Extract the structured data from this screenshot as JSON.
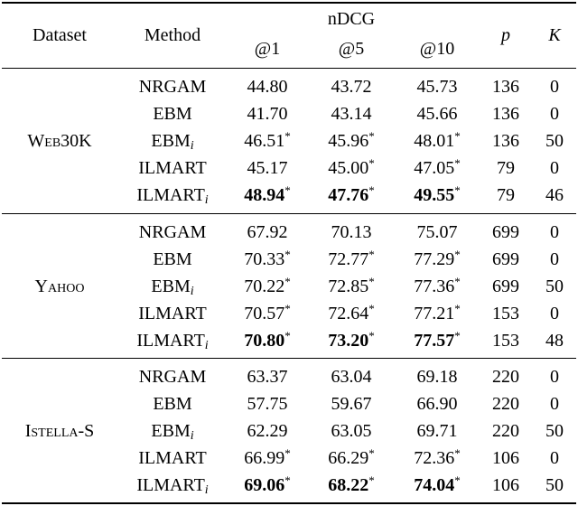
{
  "header": {
    "dataset": "Dataset",
    "method": "Method",
    "ndcg": "nDCG",
    "at1": "@1",
    "at5": "@5",
    "at10": "@10",
    "p": "p",
    "k": "K"
  },
  "groups": [
    {
      "dataset": "Web30K",
      "rows": [
        {
          "method": "NRGAM",
          "sub": "",
          "v1": "44.80",
          "s1": "",
          "b1": false,
          "v5": "43.72",
          "s5": "",
          "b5": false,
          "v10": "45.73",
          "s10": "",
          "b10": false,
          "p": "136",
          "k": "0"
        },
        {
          "method": "EBM",
          "sub": "",
          "v1": "41.70",
          "s1": "",
          "b1": false,
          "v5": "43.14",
          "s5": "",
          "b5": false,
          "v10": "45.66",
          "s10": "",
          "b10": false,
          "p": "136",
          "k": "0"
        },
        {
          "method": "EBM",
          "sub": "i",
          "v1": "46.51",
          "s1": "*",
          "b1": false,
          "v5": "45.96",
          "s5": "*",
          "b5": false,
          "v10": "48.01",
          "s10": "*",
          "b10": false,
          "p": "136",
          "k": "50"
        },
        {
          "method": "ILMART",
          "sub": "",
          "v1": "45.17",
          "s1": "",
          "b1": false,
          "v5": "45.00",
          "s5": "*",
          "b5": false,
          "v10": "47.05",
          "s10": "*",
          "b10": false,
          "p": "79",
          "k": "0"
        },
        {
          "method": "ILMART",
          "sub": "i",
          "v1": "48.94",
          "s1": "*",
          "b1": true,
          "v5": "47.76",
          "s5": "*",
          "b5": true,
          "v10": "49.55",
          "s10": "*",
          "b10": true,
          "p": "79",
          "k": "46"
        }
      ]
    },
    {
      "dataset": "Yahoo",
      "rows": [
        {
          "method": "NRGAM",
          "sub": "",
          "v1": "67.92",
          "s1": "",
          "b1": false,
          "v5": "70.13",
          "s5": "",
          "b5": false,
          "v10": "75.07",
          "s10": "",
          "b10": false,
          "p": "699",
          "k": "0"
        },
        {
          "method": "EBM",
          "sub": "",
          "v1": "70.33",
          "s1": "*",
          "b1": false,
          "v5": "72.77",
          "s5": "*",
          "b5": false,
          "v10": "77.29",
          "s10": "*",
          "b10": false,
          "p": "699",
          "k": "0"
        },
        {
          "method": "EBM",
          "sub": "i",
          "v1": "70.22",
          "s1": "*",
          "b1": false,
          "v5": "72.85",
          "s5": "*",
          "b5": false,
          "v10": "77.36",
          "s10": "*",
          "b10": false,
          "p": "699",
          "k": "50"
        },
        {
          "method": "ILMART",
          "sub": "",
          "v1": "70.57",
          "s1": "*",
          "b1": false,
          "v5": "72.64",
          "s5": "*",
          "b5": false,
          "v10": "77.21",
          "s10": "*",
          "b10": false,
          "p": "153",
          "k": "0"
        },
        {
          "method": "ILMART",
          "sub": "i",
          "v1": "70.80",
          "s1": "*",
          "b1": true,
          "v5": "73.20",
          "s5": "*",
          "b5": true,
          "v10": "77.57",
          "s10": "*",
          "b10": true,
          "p": "153",
          "k": "48"
        }
      ]
    },
    {
      "dataset": "Istella-S",
      "rows": [
        {
          "method": "NRGAM",
          "sub": "",
          "v1": "63.37",
          "s1": "",
          "b1": false,
          "v5": "63.04",
          "s5": "",
          "b5": false,
          "v10": "69.18",
          "s10": "",
          "b10": false,
          "p": "220",
          "k": "0"
        },
        {
          "method": "EBM",
          "sub": "",
          "v1": "57.75",
          "s1": "",
          "b1": false,
          "v5": "59.67",
          "s5": "",
          "b5": false,
          "v10": "66.90",
          "s10": "",
          "b10": false,
          "p": "220",
          "k": "0"
        },
        {
          "method": "EBM",
          "sub": "i",
          "v1": "62.29",
          "s1": "",
          "b1": false,
          "v5": "63.05",
          "s5": "",
          "b5": false,
          "v10": "69.71",
          "s10": "",
          "b10": false,
          "p": "220",
          "k": "50"
        },
        {
          "method": "ILMART",
          "sub": "",
          "v1": "66.99",
          "s1": "*",
          "b1": false,
          "v5": "66.29",
          "s5": "*",
          "b5": false,
          "v10": "72.36",
          "s10": "*",
          "b10": false,
          "p": "106",
          "k": "0"
        },
        {
          "method": "ILMART",
          "sub": "i",
          "v1": "69.06",
          "s1": "*",
          "b1": true,
          "v5": "68.22",
          "s5": "*",
          "b5": true,
          "v10": "74.04",
          "s10": "*",
          "b10": true,
          "p": "106",
          "k": "50"
        }
      ]
    }
  ]
}
